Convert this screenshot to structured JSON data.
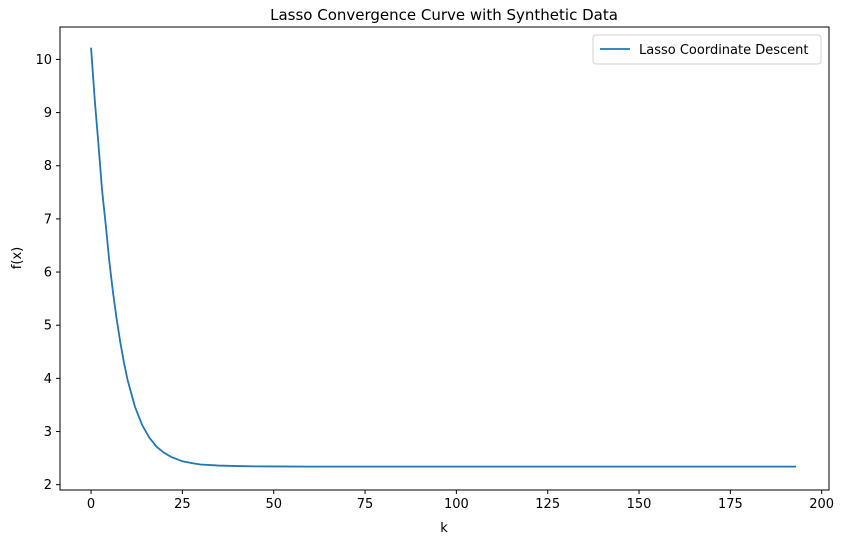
{
  "chart_data": {
    "type": "line",
    "title": "Lasso Convergence Curve with Synthetic Data",
    "xlabel": "k",
    "ylabel": "f(x)",
    "xlim": [
      -8.5,
      202
    ],
    "ylim": [
      1.9,
      10.61
    ],
    "xticks": [
      0,
      25,
      50,
      75,
      100,
      125,
      150,
      175,
      200
    ],
    "yticks": [
      2,
      3,
      4,
      5,
      6,
      7,
      8,
      9,
      10
    ],
    "grid": false,
    "legend_position": "top-right",
    "series": [
      {
        "name": "Lasso Coordinate Descent",
        "color": "#1f77b4",
        "x": [
          0,
          1,
          2,
          3,
          4,
          5,
          6,
          7,
          8,
          9,
          10,
          12,
          14,
          16,
          18,
          20,
          22,
          25,
          28,
          30,
          35,
          40,
          45,
          50,
          60,
          70,
          80,
          100,
          120,
          140,
          160,
          180,
          193
        ],
        "y": [
          10.22,
          9.25,
          8.42,
          7.55,
          6.9,
          6.2,
          5.62,
          5.12,
          4.68,
          4.3,
          3.97,
          3.47,
          3.12,
          2.88,
          2.71,
          2.6,
          2.52,
          2.44,
          2.4,
          2.38,
          2.36,
          2.35,
          2.345,
          2.343,
          2.34,
          2.34,
          2.34,
          2.34,
          2.34,
          2.34,
          2.34,
          2.34,
          2.34
        ]
      }
    ]
  }
}
